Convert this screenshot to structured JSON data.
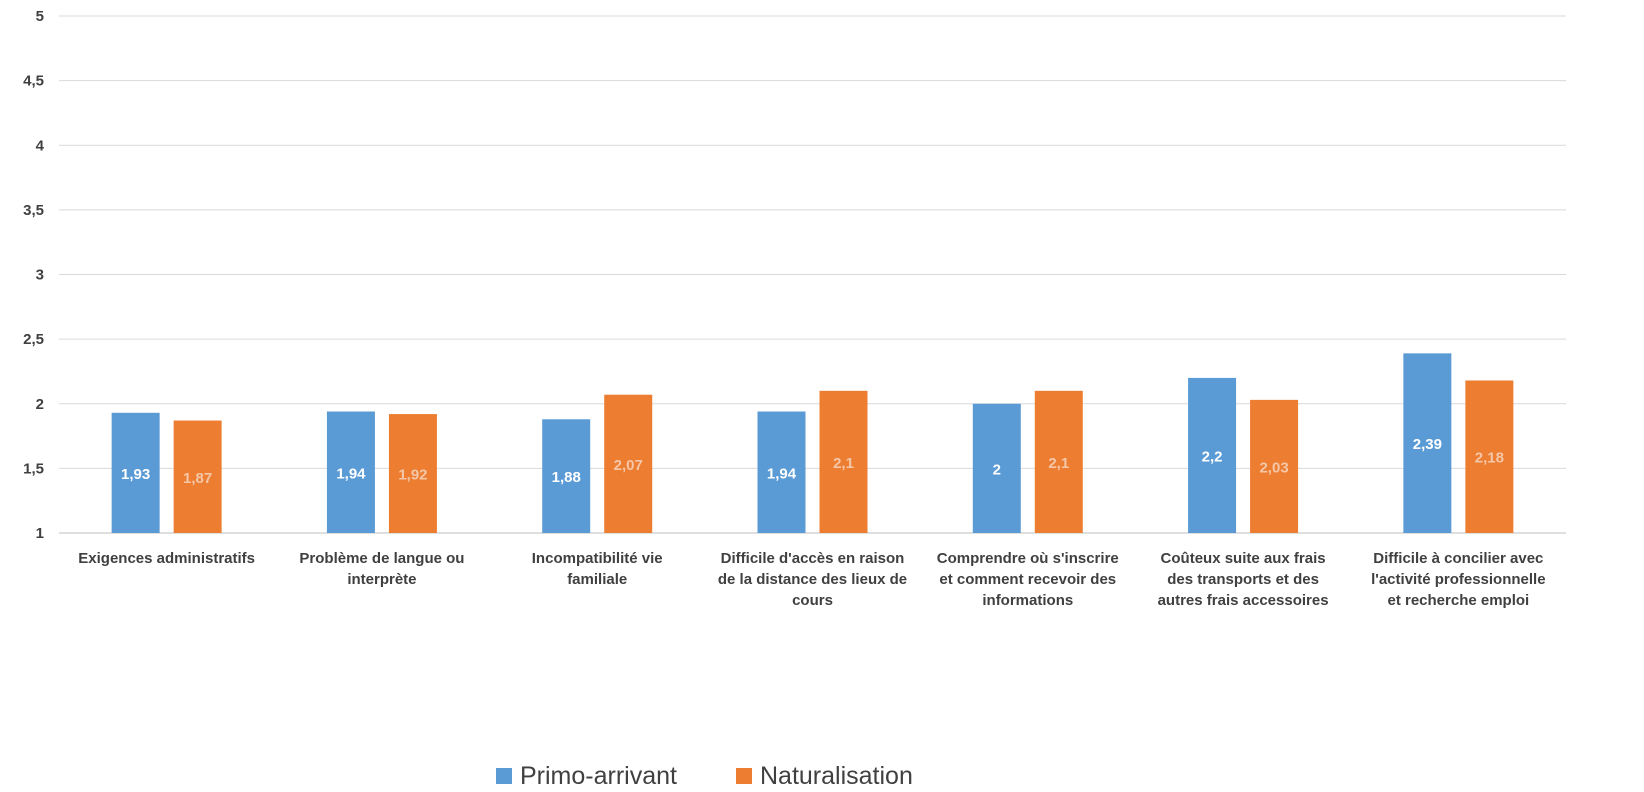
{
  "chart_data": {
    "type": "bar",
    "title": "",
    "xlabel": "",
    "ylabel": "",
    "ylim": [
      1,
      5
    ],
    "y_ticks": [
      "1",
      "1,5",
      "2",
      "2,5",
      "3",
      "3,5",
      "4",
      "4,5",
      "5"
    ],
    "grid": true,
    "legend_position": "bottom",
    "categories": [
      [
        "Exigences administratifs"
      ],
      [
        "Problème de langue ou",
        "interprète"
      ],
      [
        "Incompatibilité vie",
        "familiale"
      ],
      [
        "Difficile d'accès en raison",
        "de la distance des lieux de",
        "cours"
      ],
      [
        "Comprendre où s'inscrire",
        "et comment recevoir des",
        "informations"
      ],
      [
        "Coûteux suite aux frais",
        "des transports et des",
        "autres frais accessoires"
      ],
      [
        "Difficile à concilier avec",
        "l'activité professionnelle",
        "et recherche emploi"
      ]
    ],
    "series": [
      {
        "name": "Primo-arrivant",
        "color": "#5B9BD5",
        "label_color": "#FFFFFF",
        "values": [
          1.93,
          1.94,
          1.88,
          1.94,
          2,
          2.2,
          2.39
        ],
        "labels": [
          "1,93",
          "1,94",
          "1,88",
          "1,94",
          "2",
          "2,2",
          "2,39"
        ]
      },
      {
        "name": "Naturalisation",
        "color": "#ED7D31",
        "label_color": "#F4C7A8",
        "values": [
          1.87,
          1.92,
          2.07,
          2.1,
          2.1,
          2.03,
          2.18
        ],
        "labels": [
          "1,87",
          "1,92",
          "2,07",
          "2,1",
          "2,1",
          "2,03",
          "2,18"
        ]
      }
    ]
  }
}
